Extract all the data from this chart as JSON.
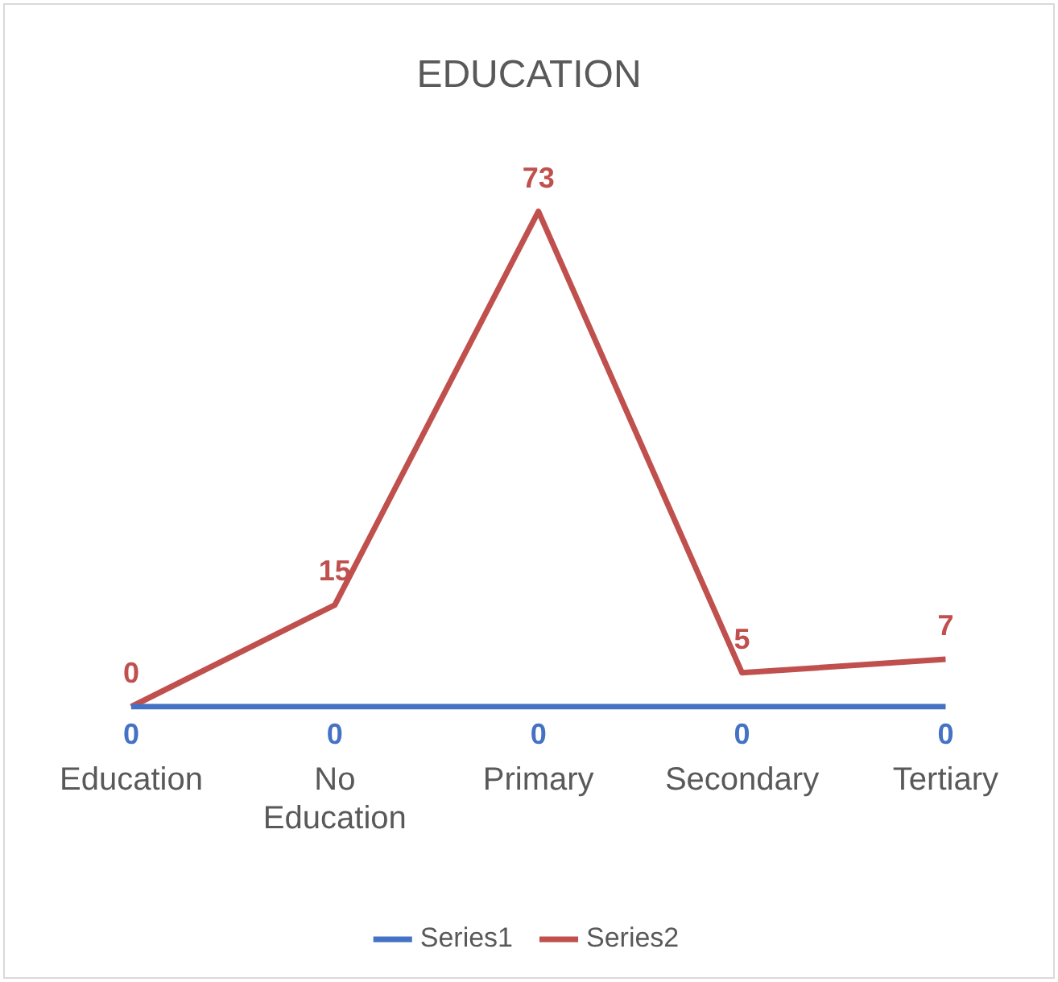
{
  "chart_data": {
    "type": "line",
    "title": "EDUCATION",
    "categories": [
      "Education",
      "No Education",
      "Primary",
      "Secondary",
      "Tertiary"
    ],
    "series": [
      {
        "name": "Series1",
        "color": "#4472c4",
        "values": [
          0,
          0,
          0,
          0,
          0
        ]
      },
      {
        "name": "Series2",
        "color": "#c0504d",
        "values": [
          0,
          15,
          73,
          5,
          7
        ]
      }
    ],
    "data_labels": true,
    "legend": "bottom",
    "grid": false,
    "marker": "none",
    "line_style": "solid"
  }
}
